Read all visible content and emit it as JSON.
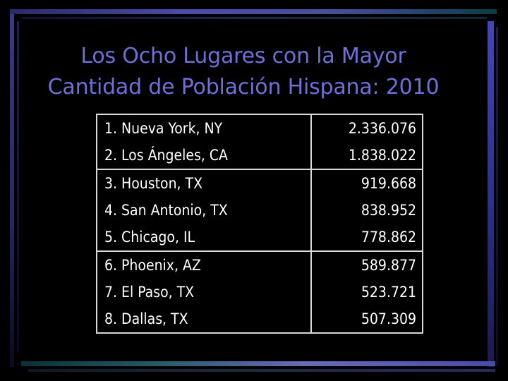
{
  "slide": {
    "title_line1": "Los Ocho Lugares con la Mayor",
    "title_line2": "Cantidad de Población Hispana: 2010"
  },
  "table": {
    "groups": [
      {
        "rows": [
          {
            "place": "1. Nueva York, NY",
            "value": "2.336.076"
          },
          {
            "place": "2. Los Ángeles, CA",
            "value": "1.838.022"
          }
        ]
      },
      {
        "rows": [
          {
            "place": "3. Houston, TX",
            "value": "919.668"
          },
          {
            "place": "4. San Antonio, TX",
            "value": "838.952"
          },
          {
            "place": "5. Chicago, IL",
            "value": "778.862"
          }
        ]
      },
      {
        "rows": [
          {
            "place": "6. Phoenix, AZ",
            "value": "589.877"
          },
          {
            "place": "7. El Paso, TX",
            "value": "523.721"
          },
          {
            "place": "8. Dallas, TX",
            "value": "507.309"
          }
        ]
      }
    ]
  }
}
